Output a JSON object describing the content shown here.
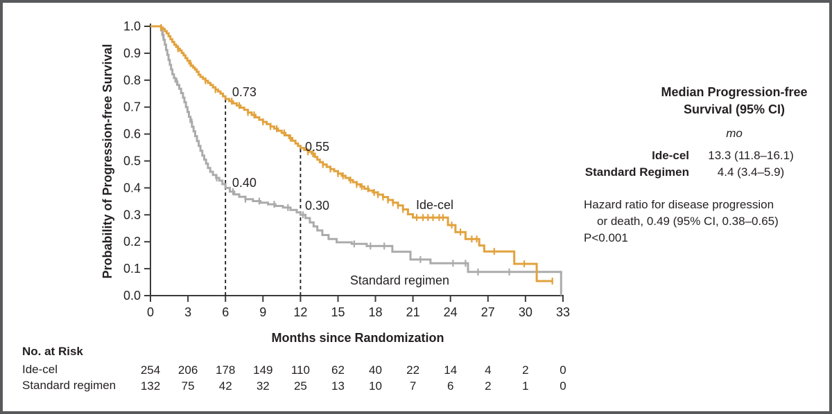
{
  "figure": {
    "background": "#ffffff",
    "border_color": "#58595B"
  },
  "colors": {
    "ide_cel": "#E2A23D",
    "standard_regimen": "#ABABAB",
    "axis": "#3a3a3a",
    "text": "#231f20",
    "dashed_line": "#1a1a1a"
  },
  "chart_data": {
    "type": "line",
    "subtype": "kaplan-meier-step",
    "xlabel": "Months since Randomization",
    "ylabel": "Probability of Progression-free Survival",
    "xlim": [
      0,
      33
    ],
    "ylim": [
      0.0,
      1.0
    ],
    "x_ticks": [
      0,
      3,
      6,
      9,
      12,
      15,
      18,
      21,
      24,
      27,
      30,
      33
    ],
    "y_tick_labels": [
      "0.0",
      "0.1",
      "0.2",
      "0.3",
      "0.4",
      "0.5",
      "0.6",
      "0.7",
      "0.8",
      "0.9",
      "1.0"
    ],
    "grid": false,
    "series": [
      {
        "name": "Standard regimen",
        "color": "#ABABAB",
        "end_month": 32.9,
        "steps": [
          [
            0,
            1.0
          ],
          [
            0.85,
            0.985
          ],
          [
            0.95,
            0.968
          ],
          [
            1.05,
            0.95
          ],
          [
            1.15,
            0.932
          ],
          [
            1.25,
            0.912
          ],
          [
            1.35,
            0.894
          ],
          [
            1.45,
            0.875
          ],
          [
            1.55,
            0.857
          ],
          [
            1.65,
            0.84
          ],
          [
            1.75,
            0.822
          ],
          [
            1.88,
            0.808
          ],
          [
            2.0,
            0.795
          ],
          [
            2.15,
            0.782
          ],
          [
            2.3,
            0.768
          ],
          [
            2.45,
            0.752
          ],
          [
            2.6,
            0.735
          ],
          [
            2.72,
            0.718
          ],
          [
            2.84,
            0.7
          ],
          [
            2.96,
            0.682
          ],
          [
            3.08,
            0.664
          ],
          [
            3.2,
            0.645
          ],
          [
            3.32,
            0.627
          ],
          [
            3.45,
            0.61
          ],
          [
            3.58,
            0.592
          ],
          [
            3.72,
            0.574
          ],
          [
            3.86,
            0.556
          ],
          [
            4.0,
            0.538
          ],
          [
            4.15,
            0.52
          ],
          [
            4.3,
            0.505
          ],
          [
            4.45,
            0.49
          ],
          [
            4.6,
            0.474
          ],
          [
            4.78,
            0.46
          ],
          [
            5.0,
            0.448
          ],
          [
            5.25,
            0.437
          ],
          [
            5.5,
            0.427
          ],
          [
            5.75,
            0.414
          ],
          [
            6.0,
            0.4
          ],
          [
            6.35,
            0.386
          ],
          [
            6.7,
            0.376
          ],
          [
            7.1,
            0.367
          ],
          [
            7.6,
            0.358
          ],
          [
            8.2,
            0.351
          ],
          [
            8.8,
            0.345
          ],
          [
            9.4,
            0.339
          ],
          [
            10.0,
            0.333
          ],
          [
            10.6,
            0.327
          ],
          [
            11.2,
            0.318
          ],
          [
            11.7,
            0.309
          ],
          [
            12.0,
            0.3
          ],
          [
            12.4,
            0.288
          ],
          [
            12.75,
            0.272
          ],
          [
            13.05,
            0.257
          ],
          [
            13.35,
            0.242
          ],
          [
            13.75,
            0.225
          ],
          [
            14.25,
            0.21
          ],
          [
            14.9,
            0.198
          ],
          [
            16.1,
            0.192
          ],
          [
            17.3,
            0.184
          ],
          [
            19.35,
            0.163
          ],
          [
            20.8,
            0.134
          ],
          [
            22.4,
            0.12
          ],
          [
            25.4,
            0.088
          ],
          [
            32.85,
            0.004
          ]
        ],
        "censor_months": [
          1.0,
          2.1,
          3.3,
          5.3,
          6.6,
          7.6,
          8.7,
          9.9,
          11.0,
          12.2,
          16.3,
          17.6,
          18.7,
          21.6,
          24.2,
          25.2,
          26.2,
          28.7
        ],
        "curve_label": {
          "text": "Standard regimen",
          "month": 15.97,
          "value": 0.041
        }
      },
      {
        "name": "Ide-cel",
        "color": "#E2A23D",
        "end_month": 32.2,
        "steps": [
          [
            0,
            1.0
          ],
          [
            0.85,
            0.995
          ],
          [
            1.0,
            0.99
          ],
          [
            1.15,
            0.982
          ],
          [
            1.3,
            0.974
          ],
          [
            1.45,
            0.963
          ],
          [
            1.6,
            0.952
          ],
          [
            1.75,
            0.942
          ],
          [
            1.9,
            0.932
          ],
          [
            2.05,
            0.924
          ],
          [
            2.2,
            0.917
          ],
          [
            2.35,
            0.91
          ],
          [
            2.5,
            0.901
          ],
          [
            2.65,
            0.892
          ],
          [
            2.8,
            0.882
          ],
          [
            2.95,
            0.872
          ],
          [
            3.1,
            0.862
          ],
          [
            3.25,
            0.854
          ],
          [
            3.4,
            0.847
          ],
          [
            3.55,
            0.84
          ],
          [
            3.7,
            0.831
          ],
          [
            3.85,
            0.82
          ],
          [
            4.0,
            0.812
          ],
          [
            4.2,
            0.805
          ],
          [
            4.4,
            0.798
          ],
          [
            4.6,
            0.79
          ],
          [
            4.8,
            0.782
          ],
          [
            5.0,
            0.773
          ],
          [
            5.2,
            0.765
          ],
          [
            5.4,
            0.758
          ],
          [
            5.6,
            0.75
          ],
          [
            5.8,
            0.74
          ],
          [
            6.0,
            0.73
          ],
          [
            6.3,
            0.722
          ],
          [
            6.6,
            0.714
          ],
          [
            6.9,
            0.706
          ],
          [
            7.2,
            0.698
          ],
          [
            7.5,
            0.69
          ],
          [
            7.8,
            0.68
          ],
          [
            8.1,
            0.671
          ],
          [
            8.4,
            0.662
          ],
          [
            8.7,
            0.653
          ],
          [
            9.0,
            0.645
          ],
          [
            9.3,
            0.637
          ],
          [
            9.6,
            0.628
          ],
          [
            9.9,
            0.62
          ],
          [
            10.2,
            0.612
          ],
          [
            10.5,
            0.604
          ],
          [
            10.8,
            0.595
          ],
          [
            11.1,
            0.585
          ],
          [
            11.35,
            0.575
          ],
          [
            11.6,
            0.565
          ],
          [
            11.8,
            0.556
          ],
          [
            12.0,
            0.548
          ],
          [
            12.3,
            0.541
          ],
          [
            12.6,
            0.534
          ],
          [
            12.9,
            0.527
          ],
          [
            13.15,
            0.515
          ],
          [
            13.35,
            0.505
          ],
          [
            13.55,
            0.495
          ],
          [
            13.8,
            0.487
          ],
          [
            14.1,
            0.478
          ],
          [
            14.4,
            0.47
          ],
          [
            14.7,
            0.462
          ],
          [
            15.0,
            0.453
          ],
          [
            15.3,
            0.445
          ],
          [
            15.6,
            0.437
          ],
          [
            15.9,
            0.429
          ],
          [
            16.2,
            0.421
          ],
          [
            16.5,
            0.413
          ],
          [
            16.8,
            0.405
          ],
          [
            17.1,
            0.397
          ],
          [
            17.45,
            0.39
          ],
          [
            17.8,
            0.383
          ],
          [
            18.2,
            0.375
          ],
          [
            18.6,
            0.366
          ],
          [
            19.0,
            0.355
          ],
          [
            19.4,
            0.345
          ],
          [
            19.8,
            0.335
          ],
          [
            20.2,
            0.32
          ],
          [
            20.6,
            0.302
          ],
          [
            21.0,
            0.29
          ],
          [
            23.8,
            0.262
          ],
          [
            24.4,
            0.236
          ],
          [
            25.2,
            0.21
          ],
          [
            26.3,
            0.186
          ],
          [
            26.7,
            0.164
          ],
          [
            29.1,
            0.118
          ],
          [
            30.9,
            0.054
          ]
        ],
        "censor_months": [
          0.85,
          2.2,
          3.2,
          4.4,
          5.2,
          6.5,
          7.1,
          7.8,
          8.3,
          9.0,
          9.6,
          10.1,
          10.7,
          11.2,
          12.6,
          13.0,
          13.8,
          14.4,
          15.0,
          15.4,
          16.0,
          16.5,
          16.9,
          17.4,
          17.9,
          18.2,
          18.6,
          19.0,
          19.4,
          19.8,
          20.2,
          21.3,
          21.8,
          22.2,
          22.6,
          23.1,
          23.4,
          24.1,
          24.8,
          25.7,
          26.1,
          27.5,
          29.9,
          32.15
        ],
        "curve_label": {
          "text": "Ide-cel",
          "month": 21.24,
          "value": 0.321
        }
      }
    ],
    "reference_lines": [
      {
        "month": 6,
        "top_value": 0.73
      },
      {
        "month": 12,
        "top_value": 0.55
      }
    ],
    "annotations": [
      {
        "text": "0.73",
        "month": 6.54,
        "value": 0.74
      },
      {
        "text": "0.40",
        "month": 6.54,
        "value": 0.404
      },
      {
        "text": "0.55",
        "month": 12.37,
        "value": 0.537
      },
      {
        "text": "0.30",
        "month": 12.37,
        "value": 0.319
      }
    ]
  },
  "stats_panel": {
    "title_line1": "Median Progression-free",
    "title_line2": "Survival (95% CI)",
    "unit": "mo",
    "rows": [
      {
        "label": "Ide-cel",
        "value": "13.3 (11.8–16.1)"
      },
      {
        "label": "Standard Regimen",
        "value": "4.4 (3.4–5.9)"
      }
    ]
  },
  "hazard": {
    "line1": "Hazard ratio for disease progression",
    "line2": "or death, 0.49 (95% CI, 0.38–0.65)",
    "line3": "P<0.001"
  },
  "risk_table": {
    "title": "No. at Risk",
    "months": [
      0,
      3,
      6,
      9,
      12,
      15,
      18,
      21,
      24,
      27,
      30,
      33
    ],
    "rows": [
      {
        "label": "Ide-cel",
        "counts": [
          254,
          206,
          178,
          149,
          110,
          62,
          40,
          22,
          14,
          4,
          2,
          0
        ]
      },
      {
        "label": "Standard regimen",
        "counts": [
          132,
          75,
          42,
          32,
          25,
          13,
          10,
          7,
          6,
          2,
          1,
          0
        ]
      }
    ]
  }
}
